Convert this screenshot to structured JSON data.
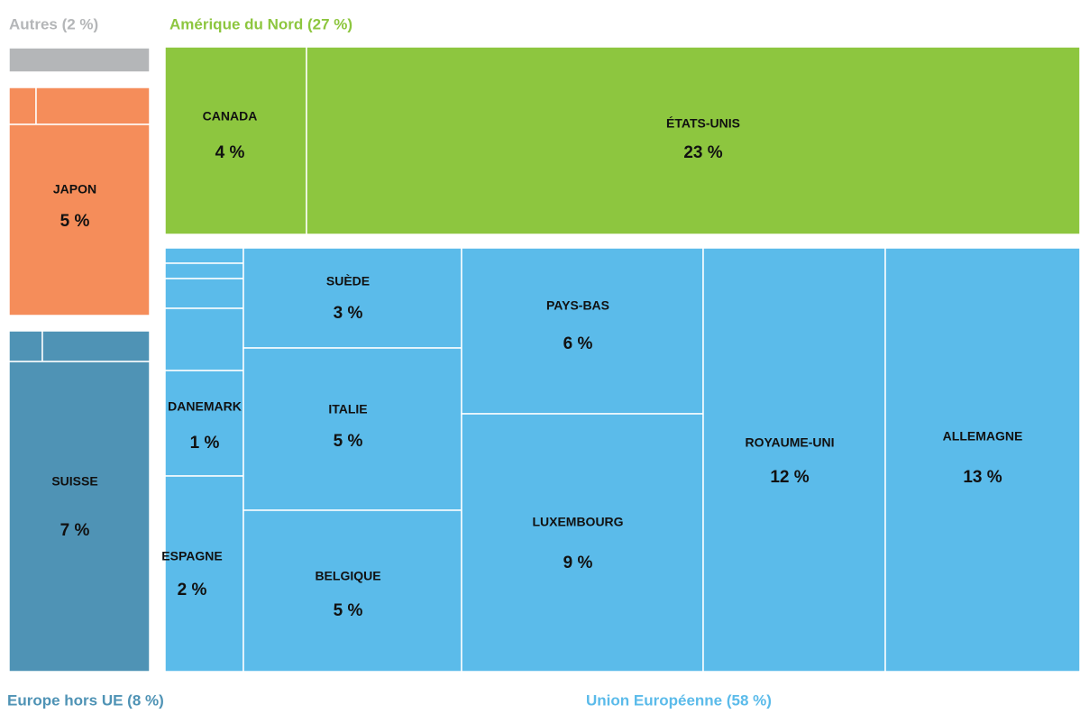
{
  "chart_data": {
    "type": "treemap",
    "groups": [
      {
        "label": "Autres (2 %)",
        "color": "#b4b6b8",
        "items": []
      },
      {
        "label": "Amérique du Nord (27 %)",
        "color": "#8dc63f",
        "items": [
          {
            "name": "CANADA",
            "value": 4,
            "value_label": "4 %"
          },
          {
            "name": "ÉTATS-UNIS",
            "value": 23,
            "value_label": "23 %"
          }
        ]
      },
      {
        "color": "#f58d5a",
        "items": [
          {
            "name": "JAPON",
            "value": 5,
            "value_label": "5 %"
          }
        ]
      },
      {
        "label": "Europe hors UE (8 %)",
        "color": "#4f93b5",
        "items": [
          {
            "name": "SUISSE",
            "value": 7,
            "value_label": "7 %"
          }
        ]
      },
      {
        "label": "Union Européenne (58 %)",
        "color": "#5bbbea",
        "items": [
          {
            "name": "DANEMARK",
            "value": 1,
            "value_label": "1 %"
          },
          {
            "name": "ESPAGNE",
            "value": 2,
            "value_label": "2 %"
          },
          {
            "name": "SUÈDE",
            "value": 3,
            "value_label": "3 %"
          },
          {
            "name": "ITALIE",
            "value": 5,
            "value_label": "5 %"
          },
          {
            "name": "BELGIQUE",
            "value": 5,
            "value_label": "5 %"
          },
          {
            "name": "PAYS-BAS",
            "value": 6,
            "value_label": "6 %"
          },
          {
            "name": "LUXEMBOURG",
            "value": 9,
            "value_label": "9 %"
          },
          {
            "name": "ROYAUME-UNI",
            "value": 12,
            "value_label": "12 %"
          },
          {
            "name": "ALLEMAGNE",
            "value": 13,
            "value_label": "13 %"
          }
        ]
      }
    ]
  }
}
